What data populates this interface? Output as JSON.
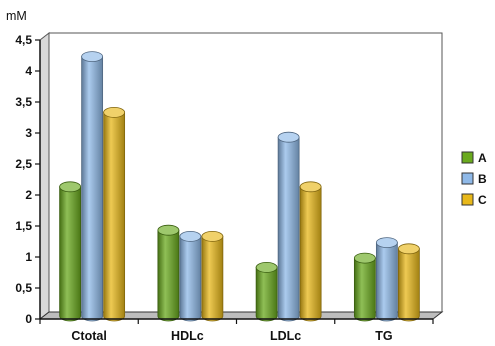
{
  "chart_data": {
    "type": "bar",
    "ylabel": "mM",
    "categories": [
      "Ctotal",
      "HDLc",
      "LDLc",
      "TG"
    ],
    "series": [
      {
        "name": "A",
        "values": [
          2.1,
          1.4,
          0.8,
          0.95
        ],
        "color": "#6aaa1e"
      },
      {
        "name": "B",
        "values": [
          4.2,
          1.3,
          2.9,
          1.2
        ],
        "color": "#8fb9e8"
      },
      {
        "name": "C",
        "values": [
          3.3,
          1.3,
          2.1,
          1.1
        ],
        "color": "#e8b81a"
      }
    ],
    "ylim": [
      0,
      4.5
    ],
    "yticks": [
      "0",
      "0,5",
      "1",
      "1,5",
      "2",
      "2,5",
      "3",
      "3,5",
      "4",
      "4,5"
    ],
    "grid": false,
    "style": "3d-cylinder",
    "legend_position": "right"
  }
}
